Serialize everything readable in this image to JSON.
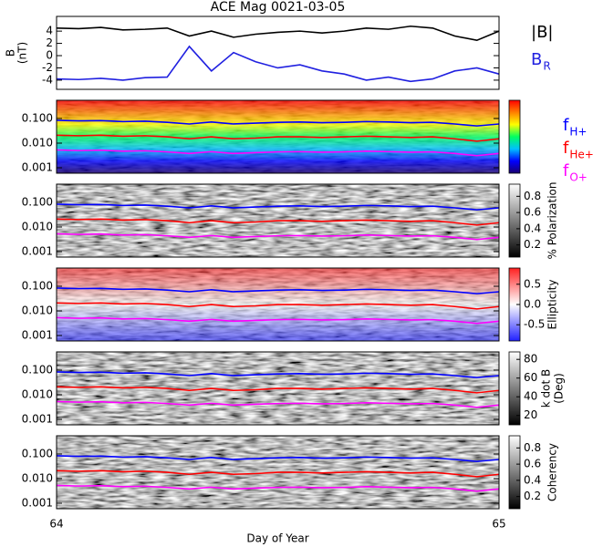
{
  "chart_data": [
    {
      "type": "line",
      "title": "ACE Mag 0021-03-05",
      "ylabel": [
        "B",
        "(nT)"
      ],
      "ylim": [
        -5.5,
        6.4
      ],
      "yticks": [
        -4,
        -2,
        0,
        2,
        4
      ],
      "x": [
        64,
        64.05,
        64.1,
        64.15,
        64.2,
        64.25,
        64.3,
        64.35,
        64.4,
        64.45,
        64.5,
        64.55,
        64.6,
        64.65,
        64.7,
        64.75,
        64.8,
        64.85,
        64.9,
        64.95,
        65
      ],
      "series": [
        {
          "name": "|B|",
          "color": "#000000",
          "values": [
            4.5,
            4.4,
            4.6,
            4.2,
            4.3,
            4.5,
            3.2,
            4.0,
            3.0,
            3.5,
            3.8,
            4.0,
            3.7,
            4.0,
            4.5,
            4.3,
            4.8,
            4.5,
            3.2,
            2.5,
            4.0
          ]
        },
        {
          "name": "B",
          "subscript": "R",
          "color": "#2020e0",
          "values": [
            -3.8,
            -3.9,
            -3.7,
            -4.0,
            -3.6,
            -3.5,
            1.5,
            -2.5,
            0.5,
            -1.0,
            -2.0,
            -1.5,
            -2.5,
            -3.0,
            -4.0,
            -3.5,
            -4.2,
            -3.8,
            -2.5,
            -2.0,
            -3.0
          ]
        }
      ]
    },
    {
      "type": "spectrogram",
      "log_y": true,
      "ylim": [
        0.0006,
        0.55
      ],
      "yticks": [
        {
          "value": 0.001,
          "label": "0.001"
        },
        {
          "value": 0.01,
          "label": "0.010"
        },
        {
          "value": 0.1,
          "label": "0.100"
        }
      ],
      "colormap": [
        "#1a0070",
        "#0000ff",
        "#00c0ff",
        "#00ff60",
        "#ffff00",
        "#ff8000",
        "#ff0000"
      ],
      "x": [
        64,
        64.05,
        64.1,
        64.15,
        64.2,
        64.25,
        64.3,
        64.35,
        64.4,
        64.45,
        64.5,
        64.55,
        64.6,
        64.65,
        64.7,
        64.75,
        64.8,
        64.85,
        64.9,
        64.95,
        65
      ],
      "series": [
        {
          "name": "f",
          "subscript": "H+",
          "color": "#0000ff",
          "values": [
            0.085,
            0.08,
            0.082,
            0.075,
            0.078,
            0.07,
            0.06,
            0.072,
            0.06,
            0.065,
            0.07,
            0.072,
            0.068,
            0.07,
            0.075,
            0.072,
            0.068,
            0.07,
            0.06,
            0.05,
            0.06
          ]
        },
        {
          "name": "f",
          "subscript": "He+",
          "color": "#ff0000",
          "values": [
            0.021,
            0.02,
            0.021,
            0.019,
            0.02,
            0.018,
            0.015,
            0.018,
            0.015,
            0.016,
            0.018,
            0.018,
            0.017,
            0.018,
            0.019,
            0.018,
            0.017,
            0.018,
            0.015,
            0.012,
            0.015
          ]
        },
        {
          "name": "f",
          "subscript": "O+",
          "color": "#ff00ff",
          "values": [
            0.0053,
            0.005,
            0.0052,
            0.0047,
            0.0049,
            0.0044,
            0.0038,
            0.0045,
            0.0038,
            0.0041,
            0.0044,
            0.0045,
            0.0043,
            0.0044,
            0.0047,
            0.0045,
            0.0043,
            0.0044,
            0.0038,
            0.0031,
            0.0038
          ]
        }
      ]
    },
    {
      "type": "spectrogram",
      "log_y": true,
      "ylim": [
        0.0006,
        0.55
      ],
      "yticks": [
        {
          "value": 0.001,
          "label": "0.001"
        },
        {
          "value": 0.01,
          "label": "0.010"
        },
        {
          "value": 0.1,
          "label": "0.100"
        }
      ],
      "colormap": [
        "#000000",
        "#ffffff"
      ],
      "colorbar": {
        "label": [
          "% Polarization"
        ],
        "lim": [
          0.05,
          0.95
        ],
        "ticks": [
          0.2,
          0.4,
          0.6,
          0.8
        ]
      },
      "x": [
        64,
        64.05,
        64.1,
        64.15,
        64.2,
        64.25,
        64.3,
        64.35,
        64.4,
        64.45,
        64.5,
        64.55,
        64.6,
        64.65,
        64.7,
        64.75,
        64.8,
        64.85,
        64.9,
        64.95,
        65
      ],
      "series": [
        {
          "color": "#0000ff",
          "values": [
            0.085,
            0.08,
            0.082,
            0.075,
            0.078,
            0.07,
            0.06,
            0.072,
            0.06,
            0.065,
            0.07,
            0.072,
            0.068,
            0.07,
            0.075,
            0.072,
            0.068,
            0.07,
            0.06,
            0.05,
            0.06
          ]
        },
        {
          "color": "#ff0000",
          "values": [
            0.021,
            0.02,
            0.021,
            0.019,
            0.02,
            0.018,
            0.015,
            0.018,
            0.015,
            0.016,
            0.018,
            0.018,
            0.017,
            0.018,
            0.019,
            0.018,
            0.017,
            0.018,
            0.015,
            0.012,
            0.015
          ]
        },
        {
          "color": "#ff00ff",
          "values": [
            0.0053,
            0.005,
            0.0052,
            0.0047,
            0.0049,
            0.0044,
            0.0038,
            0.0045,
            0.0038,
            0.0041,
            0.0044,
            0.0045,
            0.0043,
            0.0044,
            0.0047,
            0.0045,
            0.0043,
            0.0044,
            0.0038,
            0.0031,
            0.0038
          ]
        }
      ]
    },
    {
      "type": "spectrogram",
      "log_y": true,
      "ylim": [
        0.0006,
        0.55
      ],
      "yticks": [
        {
          "value": 0.001,
          "label": "0.001"
        },
        {
          "value": 0.01,
          "label": "0.010"
        },
        {
          "value": 0.1,
          "label": "0.100"
        }
      ],
      "colormap": [
        "#2020ff",
        "#ffffff",
        "#ff2020"
      ],
      "colorbar": {
        "label": [
          "Ellipticity"
        ],
        "lim": [
          -0.9,
          0.9
        ],
        "ticks": [
          -0.5,
          {
            "value": 0,
            "label": "0.0"
          },
          0.5
        ]
      },
      "x": [
        64,
        64.05,
        64.1,
        64.15,
        64.2,
        64.25,
        64.3,
        64.35,
        64.4,
        64.45,
        64.5,
        64.55,
        64.6,
        64.65,
        64.7,
        64.75,
        64.8,
        64.85,
        64.9,
        64.95,
        65
      ],
      "series": [
        {
          "color": "#0000ff",
          "values": [
            0.085,
            0.08,
            0.082,
            0.075,
            0.078,
            0.07,
            0.06,
            0.072,
            0.06,
            0.065,
            0.07,
            0.072,
            0.068,
            0.07,
            0.075,
            0.072,
            0.068,
            0.07,
            0.06,
            0.05,
            0.06
          ]
        },
        {
          "color": "#ff0000",
          "values": [
            0.021,
            0.02,
            0.021,
            0.019,
            0.02,
            0.018,
            0.015,
            0.018,
            0.015,
            0.016,
            0.018,
            0.018,
            0.017,
            0.018,
            0.019,
            0.018,
            0.017,
            0.018,
            0.015,
            0.012,
            0.015
          ]
        },
        {
          "color": "#ff00ff",
          "values": [
            0.0053,
            0.005,
            0.0052,
            0.0047,
            0.0049,
            0.0044,
            0.0038,
            0.0045,
            0.0038,
            0.0041,
            0.0044,
            0.0045,
            0.0043,
            0.0044,
            0.0047,
            0.0045,
            0.0043,
            0.0044,
            0.0038,
            0.0031,
            0.0038
          ]
        }
      ]
    },
    {
      "type": "spectrogram",
      "log_y": true,
      "ylim": [
        0.0006,
        0.55
      ],
      "yticks": [
        {
          "value": 0.001,
          "label": "0.001"
        },
        {
          "value": 0.01,
          "label": "0.010"
        },
        {
          "value": 0.1,
          "label": "0.100"
        }
      ],
      "colormap": [
        "#000000",
        "#ffffff"
      ],
      "colorbar": {
        "label": [
          "k dot B",
          "(Deg)"
        ],
        "lim": [
          10,
          88
        ],
        "ticks": [
          20,
          40,
          60,
          80
        ]
      },
      "x": [
        64,
        64.05,
        64.1,
        64.15,
        64.2,
        64.25,
        64.3,
        64.35,
        64.4,
        64.45,
        64.5,
        64.55,
        64.6,
        64.65,
        64.7,
        64.75,
        64.8,
        64.85,
        64.9,
        64.95,
        65
      ],
      "series": [
        {
          "color": "#0000ff",
          "values": [
            0.085,
            0.08,
            0.082,
            0.075,
            0.078,
            0.07,
            0.06,
            0.072,
            0.06,
            0.065,
            0.07,
            0.072,
            0.068,
            0.07,
            0.075,
            0.072,
            0.068,
            0.07,
            0.06,
            0.05,
            0.06
          ]
        },
        {
          "color": "#ff0000",
          "values": [
            0.021,
            0.02,
            0.021,
            0.019,
            0.02,
            0.018,
            0.015,
            0.018,
            0.015,
            0.016,
            0.018,
            0.018,
            0.017,
            0.018,
            0.019,
            0.018,
            0.017,
            0.018,
            0.015,
            0.012,
            0.015
          ]
        },
        {
          "color": "#ff00ff",
          "values": [
            0.0053,
            0.005,
            0.0052,
            0.0047,
            0.0049,
            0.0044,
            0.0038,
            0.0045,
            0.0038,
            0.0041,
            0.0044,
            0.0045,
            0.0043,
            0.0044,
            0.0047,
            0.0045,
            0.0043,
            0.0044,
            0.0038,
            0.0031,
            0.0038
          ]
        }
      ]
    },
    {
      "type": "spectrogram",
      "log_y": true,
      "ylim": [
        0.0006,
        0.55
      ],
      "yticks": [
        {
          "value": 0.001,
          "label": "0.001"
        },
        {
          "value": 0.01,
          "label": "0.010"
        },
        {
          "value": 0.1,
          "label": "0.100"
        }
      ],
      "colormap": [
        "#000000",
        "#ffffff"
      ],
      "colorbar": {
        "label": [
          "Coherency"
        ],
        "lim": [
          0.05,
          0.95
        ],
        "ticks": [
          0.2,
          0.4,
          0.6,
          0.8
        ]
      },
      "xlabel": "Day of Year",
      "xlim": [
        64,
        65
      ],
      "xticks": [
        64,
        65
      ],
      "x": [
        64,
        64.05,
        64.1,
        64.15,
        64.2,
        64.25,
        64.3,
        64.35,
        64.4,
        64.45,
        64.5,
        64.55,
        64.6,
        64.65,
        64.7,
        64.75,
        64.8,
        64.85,
        64.9,
        64.95,
        65
      ],
      "series": [
        {
          "color": "#0000ff",
          "values": [
            0.085,
            0.08,
            0.082,
            0.075,
            0.078,
            0.07,
            0.06,
            0.072,
            0.06,
            0.065,
            0.07,
            0.072,
            0.068,
            0.07,
            0.075,
            0.072,
            0.068,
            0.07,
            0.06,
            0.05,
            0.06
          ]
        },
        {
          "color": "#ff0000",
          "values": [
            0.021,
            0.02,
            0.021,
            0.019,
            0.02,
            0.018,
            0.015,
            0.018,
            0.015,
            0.016,
            0.018,
            0.018,
            0.017,
            0.018,
            0.019,
            0.018,
            0.017,
            0.018,
            0.015,
            0.012,
            0.015
          ]
        },
        {
          "color": "#ff00ff",
          "values": [
            0.0053,
            0.005,
            0.0052,
            0.0047,
            0.0049,
            0.0044,
            0.0038,
            0.0045,
            0.0038,
            0.0041,
            0.0044,
            0.0045,
            0.0043,
            0.0044,
            0.0047,
            0.0045,
            0.0043,
            0.0044,
            0.0038,
            0.0031,
            0.0038
          ]
        }
      ]
    }
  ]
}
